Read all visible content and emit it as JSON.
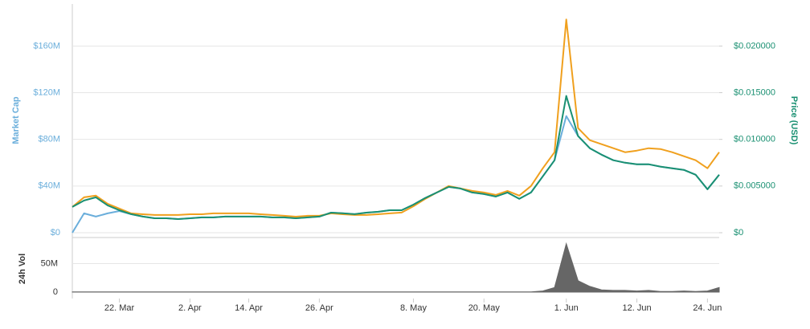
{
  "chart_data": [
    {
      "type": "line",
      "ylabel": "Market Cap",
      "y2label": "Price (USD)",
      "grid": true,
      "ylim": [
        0,
        196
      ],
      "yticks": [
        {
          "value": 0,
          "label": "$0"
        },
        {
          "value": 40,
          "label": "$40M"
        },
        {
          "value": 80,
          "label": "$80M"
        },
        {
          "value": 120,
          "label": "$120M"
        },
        {
          "value": 160,
          "label": "$160M"
        }
      ],
      "y2lim": [
        0,
        0.0245
      ],
      "y2ticks": [
        {
          "value": 0,
          "label": "$0"
        },
        {
          "value": 0.005,
          "label": "$0.005000"
        },
        {
          "value": 0.01,
          "label": "$0.010000"
        },
        {
          "value": 0.015,
          "label": "$0.015000"
        },
        {
          "value": 0.02,
          "label": "$0.020000"
        }
      ],
      "series": [
        {
          "color": "#6aaedb",
          "values": [
            0,
            16.6,
            13.8,
            16.6,
            18.6,
            15.9,
            13.8,
            12.4,
            12.4,
            11.7,
            12.4,
            13.1,
            13.1,
            13.8,
            13.8,
            13.8,
            13.8,
            13.1,
            13.1,
            12.4,
            13.1,
            13.8,
            17.2,
            16.6,
            15.9,
            17.2,
            17.9,
            19.3,
            19.3,
            24.1,
            29.7,
            34.5,
            39.3,
            37.9,
            34.5,
            33.1,
            31.0,
            34.5,
            29.0,
            34.5,
            48.3,
            62.1,
            100,
            82.8,
            72.4,
            66.9,
            62.1,
            60.0,
            58.6,
            58.6,
            56.6,
            55.2,
            53.8,
            49.7,
            37.2,
            49.7
          ]
        },
        {
          "color": "#f0a01e",
          "axis": "y2",
          "values": [
            0.00276,
            0.00379,
            0.00397,
            0.0031,
            0.00259,
            0.00207,
            0.00198,
            0.0019,
            0.0019,
            0.0019,
            0.00198,
            0.00198,
            0.00207,
            0.00207,
            0.00207,
            0.00207,
            0.00198,
            0.0019,
            0.00181,
            0.00172,
            0.00181,
            0.00181,
            0.00207,
            0.00198,
            0.0019,
            0.0019,
            0.00198,
            0.00207,
            0.00216,
            0.00284,
            0.00362,
            0.00431,
            0.005,
            0.00474,
            0.00448,
            0.00431,
            0.00405,
            0.00448,
            0.00397,
            0.005,
            0.0069,
            0.00862,
            0.02284,
            0.0112,
            0.00991,
            0.00948,
            0.00905,
            0.00862,
            0.00879,
            0.00905,
            0.00897,
            0.00862,
            0.00819,
            0.00776,
            0.0069,
            0.00862
          ]
        },
        {
          "color": "#1a9072",
          "axis": "y2",
          "values": [
            0.00276,
            0.00345,
            0.00379,
            0.00293,
            0.00241,
            0.00199,
            0.00173,
            0.00155,
            0.00155,
            0.00146,
            0.00155,
            0.00164,
            0.00164,
            0.00173,
            0.00173,
            0.00173,
            0.00173,
            0.00164,
            0.00164,
            0.00155,
            0.00164,
            0.00173,
            0.00215,
            0.00208,
            0.00199,
            0.00215,
            0.00224,
            0.00241,
            0.00241,
            0.00301,
            0.00371,
            0.00431,
            0.00491,
            0.00474,
            0.00431,
            0.00414,
            0.00388,
            0.00431,
            0.00363,
            0.00431,
            0.00604,
            0.00776,
            0.01466,
            0.01035,
            0.00905,
            0.00836,
            0.00776,
            0.0075,
            0.00733,
            0.00733,
            0.00708,
            0.0069,
            0.00673,
            0.00621,
            0.00465,
            0.00621
          ]
        }
      ]
    },
    {
      "type": "area",
      "ylabel": "24h Vol",
      "grid": true,
      "color": "#666666",
      "ylim": [
        0,
        90
      ],
      "yticks": [
        0,
        {
          "value": 50,
          "label": "50M"
        }
      ],
      "categories": [
        null,
        null,
        null,
        null,
        "22. Mar",
        null,
        null,
        null,
        null,
        null,
        "2. Apr",
        null,
        null,
        null,
        null,
        "14. Apr",
        null,
        null,
        null,
        null,
        null,
        "26. Apr",
        null,
        null,
        null,
        null,
        null,
        null,
        null,
        "8. May",
        null,
        null,
        null,
        null,
        null,
        "20. May",
        null,
        null,
        null,
        null,
        null,
        null,
        "1. Jun",
        null,
        null,
        null,
        null,
        null,
        "12. Jun",
        null,
        null,
        null,
        null,
        null,
        "24. Jun",
        null
      ],
      "values": [
        0.3,
        0.3,
        0.3,
        0.3,
        0.3,
        0.3,
        0.3,
        0.3,
        0.3,
        0.3,
        0.3,
        0.3,
        0.3,
        0.3,
        0.3,
        0.3,
        0.3,
        0.3,
        0.3,
        0.3,
        0.3,
        0.3,
        0.3,
        0.3,
        0.3,
        0.3,
        0.3,
        0.3,
        0.3,
        0.3,
        0.3,
        0.3,
        0.3,
        0.3,
        0.3,
        0.3,
        0.3,
        0.3,
        0.3,
        0.3,
        2,
        8,
        85,
        20,
        10,
        4,
        3,
        3,
        2,
        3,
        1,
        1,
        2,
        1,
        2,
        8
      ]
    }
  ]
}
